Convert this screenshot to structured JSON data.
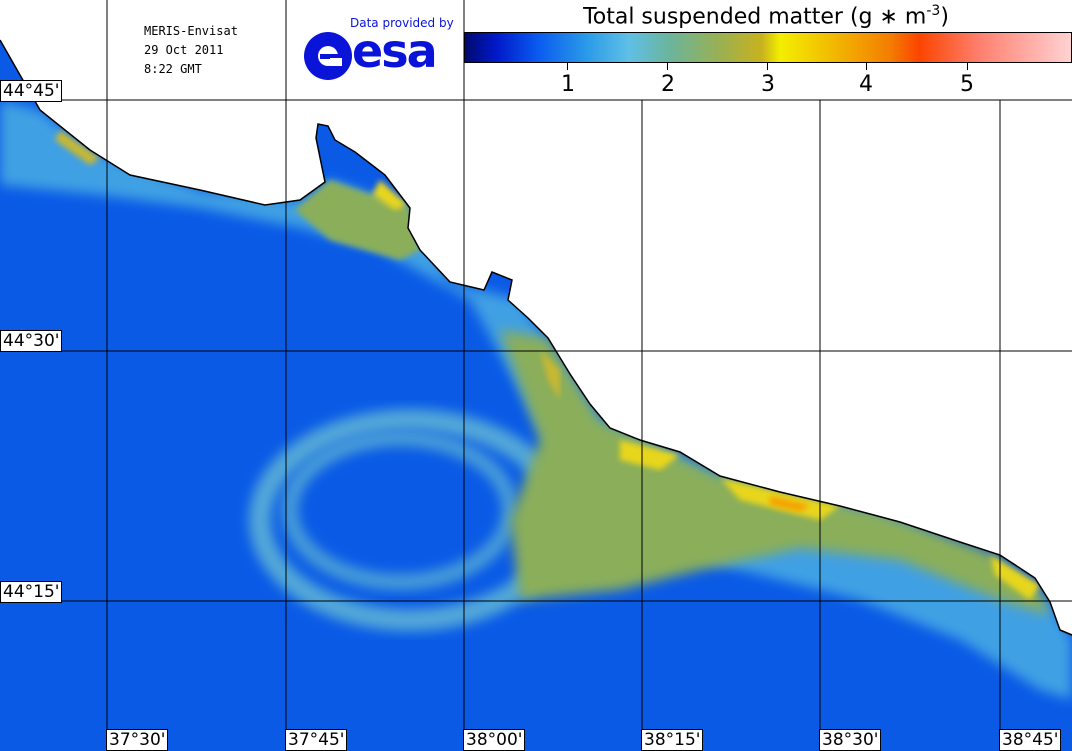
{
  "header": {
    "satellite": "MERIS-Envisat",
    "date": "29 Oct 2011",
    "time": "8:22 GMT",
    "provider_text": "Data provided by",
    "logo_text": "esa"
  },
  "legend": {
    "title": "Total suspended matter (g * m-3)",
    "title_prefix": "Total suspended matter (g ",
    "title_op": "∗",
    "title_unit": " m",
    "title_exp": "-3",
    "title_suffix": ")",
    "ticks": [
      "1",
      "2",
      "3",
      "4",
      "5"
    ],
    "colors": [
      "#000a6e",
      "#0a5af0",
      "#5fbfe6",
      "#9ab052",
      "#f4ee00",
      "#f47e00",
      "#fb4500",
      "#ffd2d2"
    ]
  },
  "grid": {
    "latitudes": [
      "44°45'",
      "44°30'",
      "44°15'"
    ],
    "longitudes": [
      "37°30'",
      "37°45'",
      "38°00'",
      "38°15'",
      "38°30'",
      "38°45'"
    ]
  },
  "colors": {
    "land": "#ffffff",
    "sea_deep": "#0a5ae6",
    "sea_light": "#3fa0e4",
    "turbid": "#8aae5a",
    "sediment_high": "#e8d61a",
    "coastline": "#000000",
    "gridline": "#000000"
  }
}
